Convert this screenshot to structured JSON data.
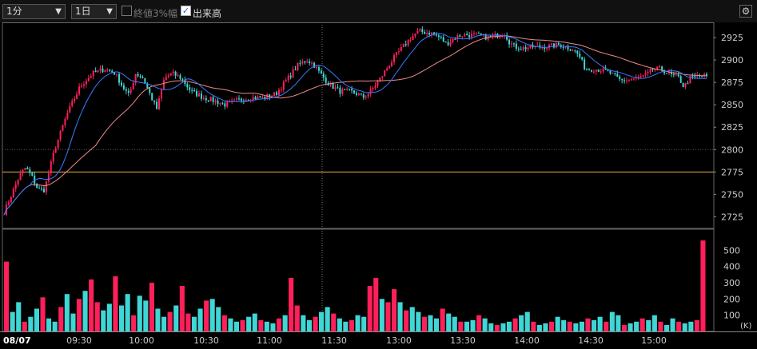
{
  "toolbar": {
    "interval": "1分",
    "span": "1日",
    "limit_label": "終値3%幅",
    "limit_checked": false,
    "volume_label": "出来高",
    "volume_checked": true,
    "settings_icon": "gear-icon"
  },
  "chart_data": [
    {
      "type": "candlestick",
      "title": "",
      "date_label": "08/07",
      "x_ticks": [
        "09:30",
        "10:00",
        "10:30",
        "11:00",
        "11:30",
        "13:00",
        "13:30",
        "14:00",
        "14:30",
        "15:00"
      ],
      "ylim": [
        2712,
        2942
      ],
      "y_ticks": [
        2725,
        2750,
        2775,
        2800,
        2825,
        2850,
        2875,
        2900,
        2925
      ],
      "reference_line": 2775,
      "colors": {
        "up": "#ff1f5a",
        "down": "#3fd6d6",
        "ma_short": "#3a7bff",
        "ma_long": "#f08a8a",
        "reference": "#e8b040",
        "grid": "#555555"
      },
      "price_anchors": [
        [
          0,
          2730
        ],
        [
          6,
          2750
        ],
        [
          12,
          2770
        ],
        [
          17,
          2780
        ],
        [
          22,
          2770
        ],
        [
          27,
          2755
        ],
        [
          32,
          2755
        ],
        [
          40,
          2800
        ],
        [
          50,
          2840
        ],
        [
          60,
          2870
        ],
        [
          70,
          2885
        ],
        [
          80,
          2890
        ],
        [
          88,
          2885
        ],
        [
          94,
          2870
        ],
        [
          99,
          2860
        ],
        [
          104,
          2885
        ],
        [
          110,
          2880
        ],
        [
          116,
          2860
        ],
        [
          121,
          2845
        ],
        [
          127,
          2880
        ],
        [
          133,
          2885
        ],
        [
          140,
          2880
        ],
        [
          148,
          2865
        ],
        [
          158,
          2858
        ],
        [
          165,
          2855
        ],
        [
          175,
          2850
        ],
        [
          185,
          2855
        ],
        [
          195,
          2858
        ],
        [
          205,
          2858
        ],
        [
          215,
          2862
        ],
        [
          225,
          2880
        ],
        [
          233,
          2895
        ],
        [
          240,
          2900
        ],
        [
          245,
          2895
        ],
        [
          250,
          2885
        ],
        [
          258,
          2872
        ],
        [
          266,
          2865
        ],
        [
          274,
          2865
        ],
        [
          280,
          2862
        ],
        [
          284,
          2858
        ],
        [
          290,
          2865
        ],
        [
          297,
          2878
        ],
        [
          305,
          2895
        ],
        [
          310,
          2905
        ],
        [
          316,
          2915
        ],
        [
          322,
          2925
        ],
        [
          328,
          2932
        ],
        [
          338,
          2930
        ],
        [
          345,
          2925
        ],
        [
          350,
          2918
        ],
        [
          357,
          2925
        ],
        [
          362,
          2928
        ],
        [
          372,
          2928
        ],
        [
          384,
          2925
        ],
        [
          396,
          2930
        ],
        [
          400,
          2920
        ],
        [
          404,
          2915
        ],
        [
          410,
          2913
        ],
        [
          420,
          2915
        ],
        [
          430,
          2915
        ],
        [
          440,
          2917
        ],
        [
          450,
          2912
        ],
        [
          455,
          2905
        ],
        [
          460,
          2890
        ],
        [
          468,
          2890
        ],
        [
          475,
          2888
        ],
        [
          480,
          2885
        ],
        [
          488,
          2877
        ],
        [
          495,
          2878
        ],
        [
          502,
          2880
        ],
        [
          508,
          2883
        ],
        [
          514,
          2890
        ],
        [
          520,
          2890
        ],
        [
          528,
          2883
        ],
        [
          534,
          2880
        ],
        [
          538,
          2870
        ],
        [
          543,
          2880
        ],
        [
          550,
          2882
        ],
        [
          556,
          2882
        ]
      ],
      "volume": {
        "unit": "(K)",
        "ylim": [
          0,
          600
        ],
        "y_ticks": [
          100,
          200,
          300,
          400,
          500
        ],
        "sample_values": [
          430,
          120,
          180,
          60,
          90,
          140,
          210,
          80,
          60,
          150,
          230,
          110,
          200,
          250,
          320,
          180,
          130,
          170,
          340,
          160,
          230,
          100,
          220,
          190,
          300,
          140,
          90,
          120,
          160,
          280,
          110,
          90,
          140,
          190,
          200,
          150,
          100,
          80,
          60,
          70,
          90,
          110,
          70,
          60,
          50,
          80,
          100,
          330,
          160,
          100,
          70,
          90,
          120,
          150,
          110,
          80,
          60,
          70,
          100,
          90,
          280,
          330,
          200,
          180,
          260,
          180,
          130,
          150,
          120,
          90,
          100,
          80,
          140,
          110,
          90,
          60,
          60,
          70,
          100,
          80,
          50,
          40,
          50,
          60,
          80,
          100,
          120,
          60,
          40,
          50,
          60,
          90,
          70,
          60,
          50,
          60,
          80,
          70,
          90,
          60,
          120,
          100,
          40,
          50,
          60,
          80,
          70,
          100,
          60,
          40,
          80,
          60,
          50,
          60,
          70,
          560
        ]
      }
    }
  ]
}
